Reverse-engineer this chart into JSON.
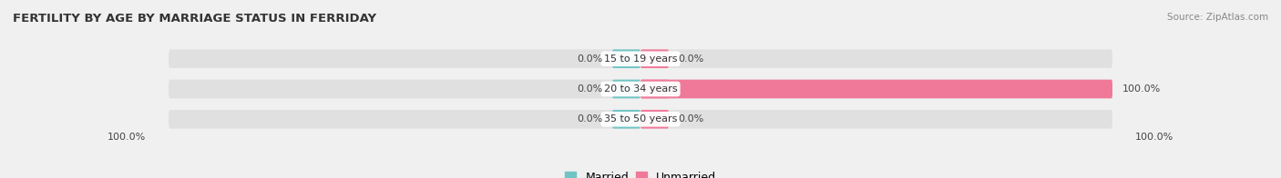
{
  "title": "FERTILITY BY AGE BY MARRIAGE STATUS IN FERRIDAY",
  "source": "Source: ZipAtlas.com",
  "categories": [
    "15 to 19 years",
    "20 to 34 years",
    "35 to 50 years"
  ],
  "married_values": [
    0.0,
    0.0,
    0.0
  ],
  "unmarried_values": [
    0.0,
    100.0,
    0.0
  ],
  "left_axis_label": "100.0%",
  "right_axis_label": "100.0%",
  "married_color": "#70c4c4",
  "unmarried_color": "#f07898",
  "bar_bg_color": "#e0e0e0",
  "fig_bg_color": "#f0f0f0",
  "bar_height": 0.62,
  "title_fontsize": 9.5,
  "label_fontsize": 8,
  "legend_fontsize": 9,
  "xlim_left": -100,
  "xlim_right": 100,
  "figsize": [
    14.06,
    1.96
  ],
  "dpi": 100
}
